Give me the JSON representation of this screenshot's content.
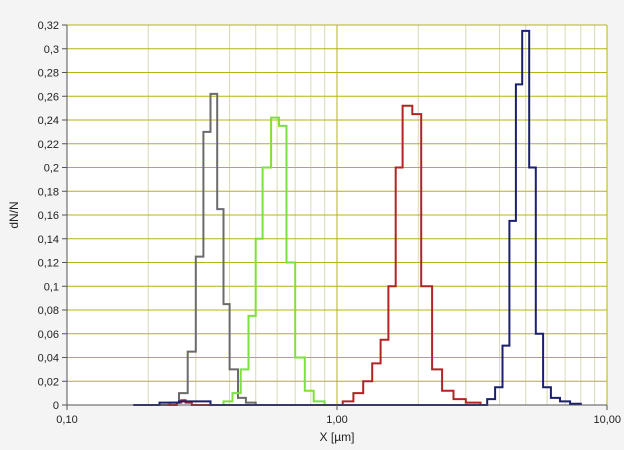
{
  "chart_data": {
    "type": "line",
    "xscale": "log",
    "xlabel": "X [µm]",
    "ylabel": "dN/N",
    "xlim": [
      0.1,
      10
    ],
    "ylim": [
      0,
      0.32
    ],
    "grid": true,
    "colors": {
      "background": "#f4f4f4",
      "plot_background": "#ffffff",
      "major_grid": "#b4b414",
      "minor_grid": "#d9d9b5",
      "axis": "#555555"
    },
    "x_ticks": [
      {
        "value": 0.1,
        "label": "0,10"
      },
      {
        "value": 1,
        "label": "1,00"
      },
      {
        "value": 10,
        "label": "10,00"
      }
    ],
    "y_ticks": [
      {
        "value": 0,
        "label": "0"
      },
      {
        "value": 0.02,
        "label": "0,02"
      },
      {
        "value": 0.04,
        "label": "0,04"
      },
      {
        "value": 0.06,
        "label": "0,06"
      },
      {
        "value": 0.08,
        "label": "0,08"
      },
      {
        "value": 0.1,
        "label": "0,1"
      },
      {
        "value": 0.12,
        "label": "0,12"
      },
      {
        "value": 0.14,
        "label": "0,14"
      },
      {
        "value": 0.16,
        "label": "0,16"
      },
      {
        "value": 0.18,
        "label": "0,18"
      },
      {
        "value": 0.2,
        "label": "0,2"
      },
      {
        "value": 0.22,
        "label": "0,22"
      },
      {
        "value": 0.24,
        "label": "0,24"
      },
      {
        "value": 0.26,
        "label": "0,26"
      },
      {
        "value": 0.28,
        "label": "0,28"
      },
      {
        "value": 0.3,
        "label": "0,3"
      },
      {
        "value": 0.32,
        "label": "0,32"
      }
    ],
    "series": [
      {
        "color": "#6b6b6b",
        "x": [
          0.176,
          0.24,
          0.26,
          0.28,
          0.3,
          0.32,
          0.34,
          0.36,
          0.38,
          0.4,
          0.43,
          0.46,
          0.5
        ],
        "y": [
          0,
          0.002,
          0.01,
          0.045,
          0.125,
          0.23,
          0.262,
          0.165,
          0.085,
          0.03,
          0.006,
          0.002,
          0
        ]
      },
      {
        "color": "#7ee03a",
        "x": [
          0.32,
          0.38,
          0.41,
          0.44,
          0.47,
          0.5,
          0.53,
          0.57,
          0.61,
          0.65,
          0.7,
          0.76,
          0.82,
          0.9
        ],
        "y": [
          0,
          0.003,
          0.01,
          0.03,
          0.075,
          0.14,
          0.2,
          0.242,
          0.235,
          0.12,
          0.04,
          0.012,
          0.003,
          0
        ]
      },
      {
        "color": "#b22424",
        "x": [
          0.235,
          0.255,
          0.265,
          0.275,
          0.29,
          0.9,
          1.05,
          1.15,
          1.25,
          1.35,
          1.45,
          1.55,
          1.65,
          1.75,
          1.9,
          2.05,
          2.25,
          2.45,
          2.7,
          3.0,
          3.4
        ],
        "y": [
          0,
          0.002,
          0.004,
          0.002,
          0,
          0,
          0.003,
          0.01,
          0.02,
          0.035,
          0.055,
          0.1,
          0.2,
          0.252,
          0.245,
          0.1,
          0.03,
          0.012,
          0.005,
          0.002,
          0
        ]
      },
      {
        "color": "#1a1f6e",
        "x": [
          0.176,
          0.22,
          0.26,
          0.3,
          0.34,
          3.3,
          3.6,
          3.85,
          4.1,
          4.35,
          4.6,
          4.85,
          5.15,
          5.45,
          5.8,
          6.2,
          6.7,
          7.3,
          8.0
        ],
        "y": [
          0,
          0.002,
          0.003,
          0.003,
          0,
          0,
          0.005,
          0.015,
          0.05,
          0.155,
          0.27,
          0.315,
          0.2,
          0.06,
          0.015,
          0.006,
          0.003,
          0.001,
          0
        ]
      }
    ]
  }
}
